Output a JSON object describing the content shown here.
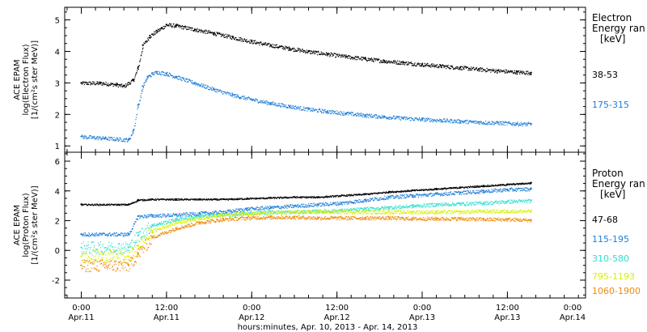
{
  "chart_data": [
    {
      "type": "scatter",
      "ylabel_lines": [
        "ACE EPAM",
        "log(Electron Flux)",
        "[1/(cm²s ster MeV)]"
      ],
      "ylim": [
        0.8,
        5.4
      ],
      "yticks": [
        1,
        2,
        3,
        4,
        5
      ],
      "legend_title": [
        "Electron",
        "Energy ran",
        "[keV]"
      ],
      "series": [
        {
          "name": "38-53",
          "color": "#000000",
          "x": [
            0,
            8,
            15,
            18,
            22,
            24,
            26,
            29,
            32,
            34,
            36,
            40,
            48,
            56,
            64,
            72,
            80,
            88,
            96,
            104,
            112,
            120,
            128,
            136,
            144,
            152,
            160,
            168,
            176,
            184,
            190
          ],
          "y": [
            3.0,
            3.0,
            2.95,
            2.9,
            3.1,
            3.5,
            4.2,
            4.5,
            4.65,
            4.75,
            4.85,
            4.82,
            4.7,
            4.58,
            4.45,
            4.32,
            4.2,
            4.1,
            4.0,
            3.92,
            3.84,
            3.77,
            3.7,
            3.65,
            3.59,
            3.54,
            3.49,
            3.44,
            3.39,
            3.35,
            3.33
          ]
        },
        {
          "name": "175-315",
          "color": "#1e7fd8",
          "x": [
            0,
            10,
            20,
            22,
            24,
            26,
            28,
            30,
            32,
            36,
            40,
            48,
            56,
            64,
            72,
            80,
            88,
            96,
            104,
            112,
            120,
            128,
            136,
            144,
            152,
            160,
            168,
            176,
            184,
            190
          ],
          "y": [
            1.3,
            1.25,
            1.2,
            1.5,
            2.3,
            2.9,
            3.2,
            3.3,
            3.35,
            3.3,
            3.2,
            3.0,
            2.8,
            2.62,
            2.48,
            2.36,
            2.26,
            2.17,
            2.1,
            2.04,
            1.98,
            1.93,
            1.89,
            1.85,
            1.82,
            1.79,
            1.76,
            1.74,
            1.71,
            1.7
          ]
        }
      ]
    },
    {
      "type": "scatter",
      "ylabel_lines": [
        "ACE EPAM",
        "log(Proton Flux)",
        "[1/(cm²s ster MeV)]"
      ],
      "ylim": [
        -3.2,
        6.6
      ],
      "yticks": [
        -2,
        0,
        2,
        4,
        6
      ],
      "legend_title": [
        "Proton",
        "Energy ran",
        "[keV]"
      ],
      "series": [
        {
          "name": "47-68",
          "color": "#000000",
          "x": [
            0,
            20,
            24,
            30,
            40,
            50,
            60,
            70,
            80,
            90,
            100,
            110,
            120,
            130,
            140,
            150,
            160,
            170,
            180,
            190
          ],
          "y": [
            3.1,
            3.1,
            3.4,
            3.45,
            3.45,
            3.45,
            3.45,
            3.5,
            3.55,
            3.6,
            3.6,
            3.7,
            3.8,
            3.95,
            4.05,
            4.15,
            4.25,
            4.35,
            4.45,
            4.55
          ]
        },
        {
          "name": "115-195",
          "color": "#1e7fd8",
          "x": [
            0,
            20,
            24,
            30,
            40,
            50,
            60,
            70,
            80,
            90,
            100,
            110,
            120,
            130,
            140,
            150,
            160,
            170,
            180,
            190
          ],
          "y": [
            1.1,
            1.1,
            2.3,
            2.35,
            2.4,
            2.5,
            2.6,
            2.8,
            2.9,
            3.0,
            3.1,
            3.2,
            3.4,
            3.6,
            3.7,
            3.8,
            3.9,
            4.0,
            4.1,
            4.15
          ]
        },
        {
          "name": "310-580",
          "color": "#2ee0d0",
          "x": [
            0,
            20,
            24,
            30,
            40,
            50,
            60,
            70,
            80,
            90,
            100,
            110,
            120,
            130,
            140,
            150,
            160,
            170,
            180,
            190
          ],
          "y": [
            0.2,
            0.2,
            1.0,
            1.7,
            2.1,
            2.3,
            2.4,
            2.5,
            2.6,
            2.6,
            2.65,
            2.7,
            2.8,
            2.9,
            3.0,
            3.1,
            3.15,
            3.2,
            3.3,
            3.35
          ]
        },
        {
          "name": "795-1193",
          "color": "#d8f000",
          "x": [
            0,
            20,
            24,
            30,
            40,
            50,
            60,
            70,
            80,
            90,
            100,
            110,
            120,
            130,
            140,
            150,
            160,
            170,
            180,
            190
          ],
          "y": [
            -0.4,
            -0.4,
            0.3,
            1.3,
            1.9,
            2.2,
            2.4,
            2.5,
            2.55,
            2.6,
            2.6,
            2.6,
            2.6,
            2.6,
            2.6,
            2.6,
            2.6,
            2.65,
            2.65,
            2.65
          ]
        },
        {
          "name": "1060-1900",
          "color": "#f08a10",
          "x": [
            0,
            20,
            24,
            30,
            40,
            50,
            60,
            70,
            80,
            90,
            100,
            110,
            120,
            130,
            140,
            150,
            160,
            170,
            180,
            190
          ],
          "y": [
            -1.0,
            -1.0,
            -0.2,
            0.9,
            1.5,
            1.9,
            2.1,
            2.2,
            2.25,
            2.25,
            2.2,
            2.2,
            2.2,
            2.2,
            2.15,
            2.15,
            2.15,
            2.1,
            2.1,
            2.05
          ]
        }
      ]
    }
  ],
  "x_axis": {
    "range_hours": [
      -7,
      213
    ],
    "ticks": [
      {
        "hours": 0,
        "time": "0:00",
        "date": "Apr.11"
      },
      {
        "hours": 36,
        "time": "12:00",
        "date": "Apr.11"
      },
      {
        "hours": 72,
        "time": "0:00",
        "date": "Apr.12"
      },
      {
        "hours": 108,
        "time": "12:00",
        "date": "Apr.12"
      },
      {
        "hours": 144,
        "time": "0:00",
        "date": "Apr.13"
      },
      {
        "hours": 180,
        "time": "12:00",
        "date": "Apr.13"
      },
      {
        "hours": 216,
        "time": "0:00",
        "date": "Apr.14"
      }
    ],
    "label": "hours:minutes, Apr. 10, 2013 - Apr. 14, 2013"
  }
}
